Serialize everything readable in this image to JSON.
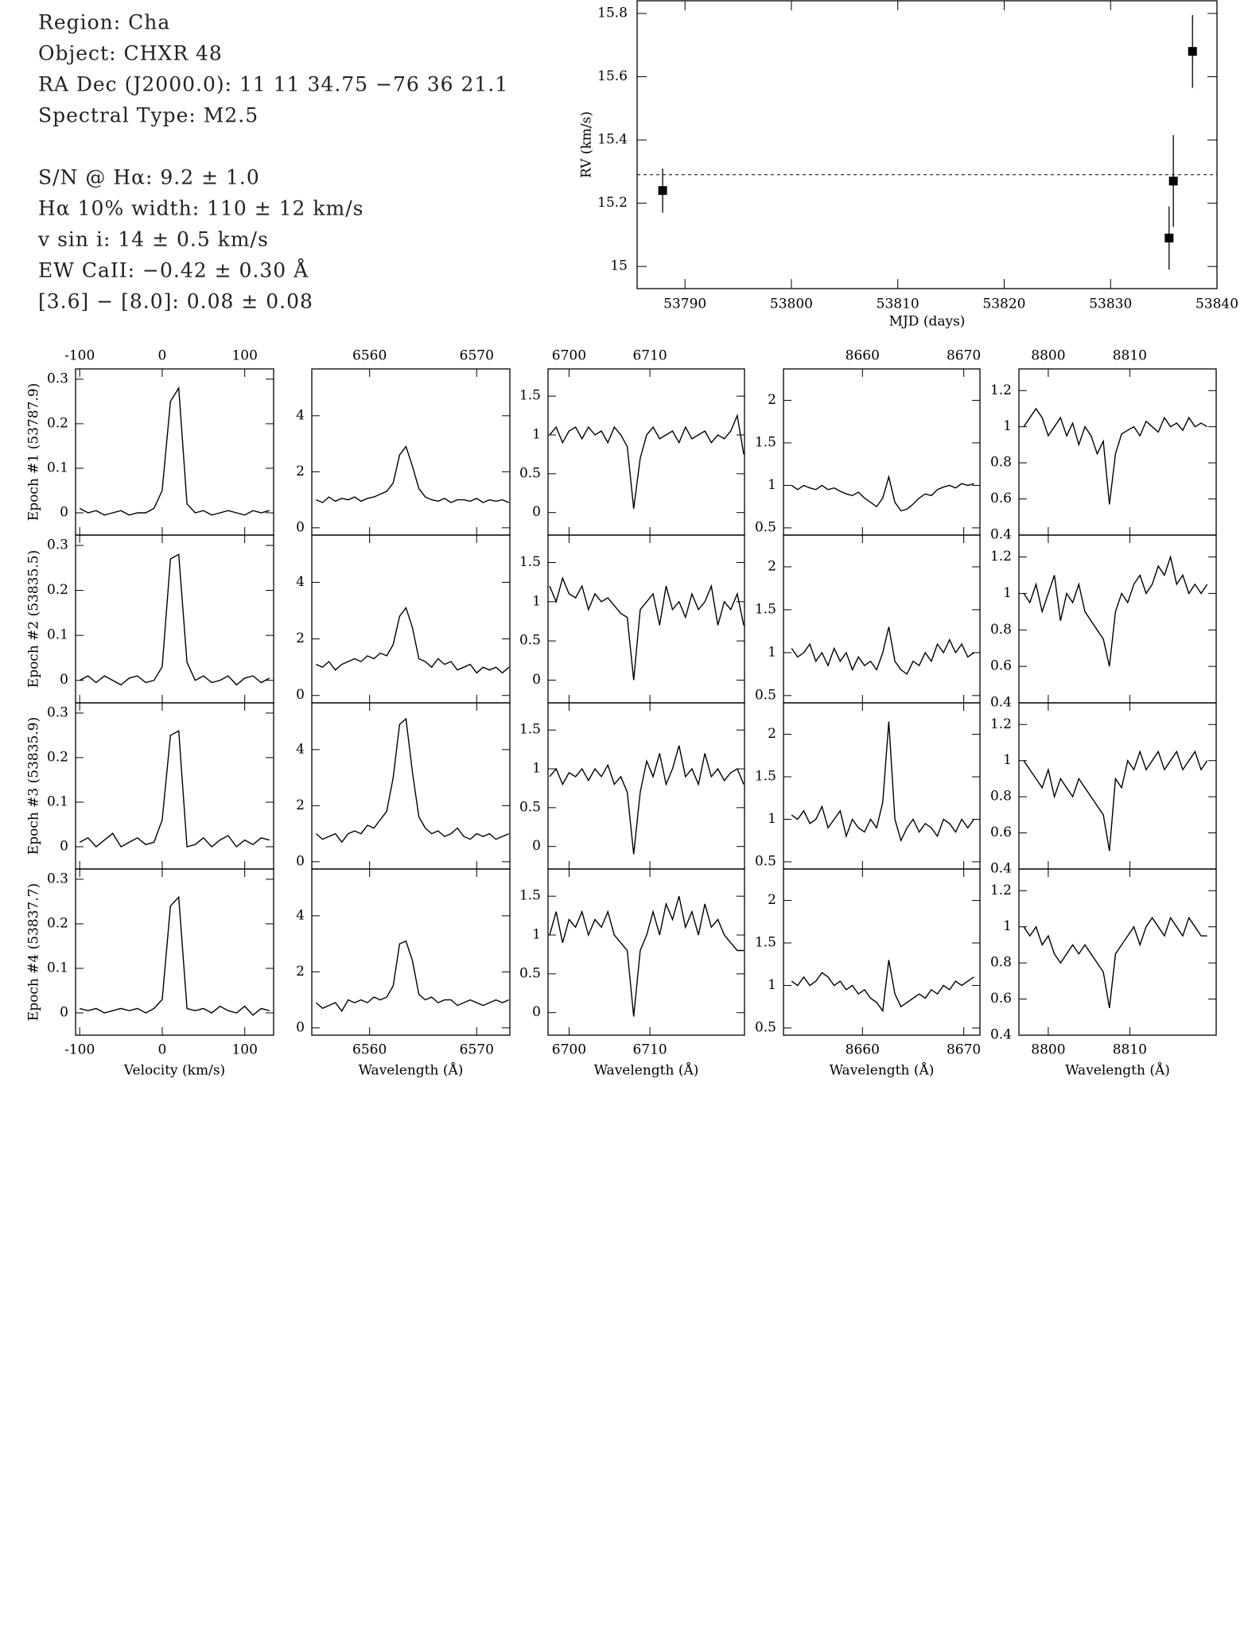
{
  "info": [
    "Region: Cha",
    "Object: CHXR 48",
    "RA Dec (J2000.0): 11 11 34.75 −76 36 21.1",
    "Spectral Type: M2.5",
    "S/N @ Hα: 9.2 ± 1.0",
    "Hα 10% width: 110 ± 12 km/s",
    "v sin i: 14 ± 0.5 km/s",
    "EW CaII: −0.42 ± 0.30 Å",
    "[3.6] − [8.0]: 0.08 ± 0.08"
  ],
  "chart_data": [
    {
      "type": "scatter",
      "xlabel": "MJD (days)",
      "ylabel": "RV (km/s)",
      "color": "#000000",
      "xlim": [
        53785.5,
        53840
      ],
      "xticks": [
        53790,
        53800,
        53810,
        53820,
        53830,
        53840
      ],
      "ylim": [
        14.93,
        15.84
      ],
      "yticks": [
        15,
        15.2,
        15.4,
        15.6,
        15.8
      ],
      "x": [
        53787.9,
        53835.5,
        53835.9,
        53837.7
      ],
      "values": [
        15.24,
        15.09,
        15.27,
        15.68
      ],
      "errors": [
        0.07,
        0.1,
        0.145,
        0.115
      ],
      "reference_line": 15.29
    },
    {
      "type": "line",
      "xlabel": "Velocity (km/s)",
      "color": "#000000",
      "row_labels": [
        "Epoch #1 (53787.9)",
        "Epoch #2 (53835.5)",
        "Epoch #3 (53835.9)",
        "Epoch #4 (53837.7)"
      ],
      "xlim": [
        -105,
        135
      ],
      "xticks": [
        -100,
        0,
        100
      ],
      "ylim": [
        -0.05,
        0.323
      ],
      "yticks": [
        0,
        0.1,
        0.2,
        0.3
      ],
      "x": [
        -100,
        -90,
        -80,
        -70,
        -60,
        -50,
        -40,
        -30,
        -20,
        -10,
        0,
        10,
        20,
        30,
        40,
        50,
        60,
        70,
        80,
        90,
        100,
        110,
        120,
        130
      ],
      "series": [
        {
          "values": [
            0.01,
            0.0,
            0.005,
            -0.005,
            0.0,
            0.005,
            -0.005,
            0.0,
            0.0,
            0.01,
            0.05,
            0.25,
            0.28,
            0.02,
            0.0,
            0.005,
            -0.005,
            0.0,
            0.005,
            0.0,
            -0.005,
            0.005,
            0.0,
            0.005
          ]
        },
        {
          "values": [
            0.0,
            0.01,
            -0.005,
            0.01,
            0.0,
            -0.01,
            0.005,
            0.01,
            -0.005,
            0.0,
            0.03,
            0.27,
            0.28,
            0.04,
            0.0,
            0.01,
            -0.005,
            0.0,
            0.01,
            -0.01,
            0.005,
            0.01,
            -0.005,
            0.005
          ]
        },
        {
          "values": [
            0.01,
            0.02,
            0.0,
            0.015,
            0.03,
            0.0,
            0.01,
            0.02,
            0.005,
            0.01,
            0.06,
            0.25,
            0.26,
            0.0,
            0.005,
            0.02,
            0.0,
            0.015,
            0.025,
            0.0,
            0.015,
            0.005,
            0.02,
            0.015
          ]
        },
        {
          "values": [
            0.01,
            0.005,
            0.01,
            0.0,
            0.005,
            0.01,
            0.005,
            0.01,
            0.0,
            0.01,
            0.03,
            0.24,
            0.26,
            0.01,
            0.005,
            0.01,
            0.0,
            0.015,
            0.005,
            0.0,
            0.015,
            -0.005,
            0.01,
            0.005
          ]
        }
      ]
    },
    {
      "type": "line",
      "xlabel": "Wavelength (Å)",
      "color": "#000000",
      "xlim": [
        6554.6,
        6573.1
      ],
      "xticks": [
        6560,
        6570
      ],
      "ylim": [
        -0.26,
        5.67
      ],
      "yticks": [
        0,
        2,
        4
      ],
      "x": [
        6555,
        6555.6,
        6556.2,
        6556.8,
        6557.4,
        6558,
        6558.6,
        6559.2,
        6559.8,
        6560.4,
        6561,
        6561.6,
        6562.2,
        6562.8,
        6563.4,
        6564,
        6564.6,
        6565.2,
        6565.8,
        6566.4,
        6567,
        6567.6,
        6568.2,
        6568.8,
        6569.4,
        6570,
        6570.6,
        6571.2,
        6571.8,
        6572.4,
        6573
      ],
      "series": [
        {
          "values": [
            1.0,
            0.9,
            1.1,
            0.95,
            1.05,
            1.0,
            1.1,
            0.95,
            1.05,
            1.1,
            1.2,
            1.3,
            1.6,
            2.6,
            2.9,
            2.2,
            1.4,
            1.1,
            1.0,
            0.95,
            1.05,
            0.9,
            1.0,
            1.0,
            0.95,
            1.05,
            0.9,
            1.0,
            0.95,
            1.0,
            0.9
          ]
        },
        {
          "values": [
            1.1,
            1.0,
            1.2,
            0.9,
            1.1,
            1.2,
            1.3,
            1.2,
            1.4,
            1.3,
            1.5,
            1.4,
            1.8,
            2.8,
            3.1,
            2.4,
            1.3,
            1.2,
            1.0,
            1.3,
            1.1,
            1.2,
            0.9,
            1.0,
            1.1,
            0.8,
            1.0,
            0.9,
            1.0,
            0.8,
            1.0
          ]
        },
        {
          "values": [
            1.0,
            0.8,
            0.9,
            1.0,
            0.7,
            1.0,
            1.1,
            1.0,
            1.3,
            1.2,
            1.5,
            1.8,
            3.0,
            4.9,
            5.1,
            3.2,
            1.6,
            1.2,
            1.0,
            1.1,
            0.9,
            1.0,
            1.2,
            0.9,
            0.8,
            1.0,
            0.9,
            1.0,
            0.8,
            0.9,
            1.0
          ]
        },
        {
          "values": [
            0.9,
            0.7,
            0.8,
            0.9,
            0.6,
            1.0,
            0.9,
            1.0,
            0.9,
            1.1,
            1.0,
            1.1,
            1.5,
            3.0,
            3.1,
            2.4,
            1.2,
            1.0,
            1.1,
            0.9,
            1.0,
            1.0,
            0.8,
            0.9,
            1.0,
            0.9,
            0.8,
            0.9,
            1.0,
            0.9,
            1.0
          ]
        }
      ]
    },
    {
      "type": "line",
      "xlabel": "Wavelength (Å)",
      "color": "#000000",
      "xlim": [
        6697.4,
        6721.7
      ],
      "xticks": [
        6700,
        6710
      ],
      "ylim": [
        -0.29,
        1.85
      ],
      "yticks": [
        0,
        0.5,
        1,
        1.5
      ],
      "x": [
        6697.6,
        6698.4,
        6699.2,
        6700,
        6700.8,
        6701.6,
        6702.4,
        6703.2,
        6704,
        6704.8,
        6705.6,
        6706.4,
        6707.2,
        6708,
        6708.8,
        6709.6,
        6710.4,
        6711.2,
        6712,
        6712.8,
        6713.6,
        6714.4,
        6715.2,
        6716,
        6716.8,
        6717.6,
        6718.4,
        6719.2,
        6720,
        6720.8,
        6721.6
      ],
      "series": [
        {
          "values": [
            1.0,
            1.1,
            0.9,
            1.05,
            1.1,
            0.95,
            1.1,
            1.0,
            1.05,
            0.9,
            1.1,
            1.0,
            0.85,
            0.05,
            0.7,
            1.0,
            1.1,
            0.95,
            1.0,
            1.05,
            0.9,
            1.1,
            0.95,
            1.0,
            1.05,
            0.9,
            1.0,
            0.95,
            1.05,
            1.25,
            0.75
          ]
        },
        {
          "values": [
            1.2,
            1.0,
            1.3,
            1.1,
            1.05,
            1.2,
            0.9,
            1.1,
            1.0,
            1.05,
            0.95,
            0.85,
            0.8,
            0.0,
            0.9,
            1.0,
            1.1,
            0.7,
            1.2,
            0.9,
            1.0,
            0.8,
            1.1,
            0.9,
            1.0,
            1.2,
            0.7,
            1.0,
            0.9,
            1.1,
            0.7
          ]
        },
        {
          "values": [
            0.9,
            1.0,
            0.8,
            0.95,
            0.9,
            1.0,
            0.85,
            1.0,
            0.9,
            1.05,
            0.8,
            0.9,
            0.7,
            -0.1,
            0.7,
            1.1,
            0.9,
            1.2,
            0.8,
            1.0,
            1.3,
            0.9,
            1.0,
            0.8,
            1.2,
            0.9,
            1.0,
            0.85,
            0.95,
            1.0,
            0.8
          ]
        },
        {
          "values": [
            1.0,
            1.3,
            0.9,
            1.2,
            1.1,
            1.3,
            1.0,
            1.2,
            1.1,
            1.3,
            1.0,
            0.9,
            0.8,
            -0.05,
            0.8,
            1.0,
            1.3,
            1.0,
            1.4,
            1.2,
            1.5,
            1.1,
            1.3,
            1.0,
            1.4,
            1.1,
            1.2,
            1.0,
            0.9,
            0.8,
            0.8
          ]
        }
      ]
    },
    {
      "type": "line",
      "xlabel": "Wavelength (Å)",
      "color": "#000000",
      "xlim": [
        8652.2,
        8671.6
      ],
      "xticks": [
        8660,
        8670
      ],
      "ylim": [
        0.415,
        2.37
      ],
      "yticks": [
        0.5,
        1,
        1.5,
        2
      ],
      "x": [
        8653,
        8653.6,
        8654.2,
        8654.8,
        8655.4,
        8656,
        8656.6,
        8657.2,
        8657.8,
        8658.4,
        8659,
        8659.6,
        8660.2,
        8660.8,
        8661.4,
        8662,
        8662.6,
        8663.2,
        8663.8,
        8664.4,
        8665,
        8665.6,
        8666.2,
        8666.8,
        8667.4,
        8668,
        8668.6,
        8669.2,
        8669.8,
        8670.4,
        8671
      ],
      "series": [
        {
          "values": [
            1.0,
            0.95,
            1.0,
            0.97,
            0.95,
            1.0,
            0.95,
            0.97,
            0.93,
            0.9,
            0.88,
            0.92,
            0.85,
            0.8,
            0.75,
            0.85,
            1.1,
            0.8,
            0.7,
            0.72,
            0.78,
            0.85,
            0.9,
            0.88,
            0.95,
            0.98,
            1.0,
            0.97,
            1.02,
            1.0,
            1.02
          ]
        },
        {
          "values": [
            1.05,
            0.95,
            1.0,
            1.1,
            0.9,
            1.0,
            0.85,
            1.05,
            0.9,
            1.0,
            0.8,
            0.95,
            0.85,
            0.9,
            0.8,
            1.0,
            1.3,
            0.9,
            0.8,
            0.75,
            0.9,
            0.85,
            1.0,
            0.9,
            1.1,
            1.0,
            1.15,
            1.0,
            1.1,
            0.95,
            1.0
          ]
        },
        {
          "values": [
            1.05,
            1.0,
            1.1,
            0.95,
            1.0,
            1.15,
            0.9,
            1.0,
            1.1,
            0.8,
            1.0,
            0.9,
            0.85,
            1.0,
            0.9,
            1.2,
            2.15,
            1.0,
            0.75,
            0.9,
            1.0,
            0.85,
            0.95,
            0.9,
            0.8,
            1.0,
            0.95,
            0.85,
            1.0,
            0.9,
            1.0
          ]
        },
        {
          "values": [
            1.05,
            1.0,
            1.1,
            1.0,
            1.05,
            1.15,
            1.1,
            1.0,
            1.05,
            0.95,
            1.0,
            0.9,
            0.95,
            0.85,
            0.8,
            0.7,
            1.3,
            0.9,
            0.75,
            0.8,
            0.85,
            0.9,
            0.85,
            0.95,
            0.9,
            1.0,
            0.95,
            1.05,
            1.0,
            1.05,
            1.1
          ]
        }
      ]
    },
    {
      "type": "line",
      "xlabel": "Wavelength (Å)",
      "color": "#000000",
      "xlim": [
        8796.4,
        8820.6
      ],
      "xticks": [
        8800,
        8810
      ],
      "ylim": [
        0.4,
        1.32
      ],
      "yticks": [
        0.4,
        0.6,
        0.8,
        1,
        1.2
      ],
      "x": [
        8797,
        8797.75,
        8798.5,
        8799.25,
        8800,
        8800.75,
        8801.5,
        8802.25,
        8803,
        8803.75,
        8804.5,
        8805.25,
        8806,
        8806.75,
        8807.5,
        8808.25,
        8809,
        8809.75,
        8810.5,
        8811.25,
        8812,
        8812.75,
        8813.5,
        8814.25,
        8815,
        8815.75,
        8816.5,
        8817.25,
        8818,
        8818.75,
        8819.5
      ],
      "series": [
        {
          "values": [
            1.0,
            1.05,
            1.1,
            1.05,
            0.95,
            1.0,
            1.05,
            0.95,
            1.02,
            0.9,
            1.0,
            0.95,
            0.85,
            0.92,
            0.57,
            0.85,
            0.96,
            0.98,
            1.0,
            0.95,
            1.03,
            1.0,
            0.97,
            1.05,
            1.0,
            1.02,
            0.98,
            1.05,
            1.0,
            1.02,
            1.0
          ]
        },
        {
          "values": [
            1.0,
            0.95,
            1.05,
            0.9,
            1.0,
            1.1,
            0.85,
            1.0,
            0.95,
            1.05,
            0.9,
            0.85,
            0.8,
            0.75,
            0.6,
            0.9,
            1.0,
            0.95,
            1.05,
            1.1,
            1.0,
            1.05,
            1.15,
            1.1,
            1.2,
            1.05,
            1.1,
            1.0,
            1.05,
            1.0,
            1.05
          ]
        },
        {
          "values": [
            1.0,
            0.95,
            0.9,
            0.85,
            0.95,
            0.8,
            0.9,
            0.85,
            0.8,
            0.9,
            0.85,
            0.8,
            0.75,
            0.7,
            0.5,
            0.9,
            0.85,
            1.0,
            0.95,
            1.05,
            0.95,
            1.0,
            1.05,
            0.95,
            1.0,
            1.05,
            0.95,
            1.0,
            1.05,
            0.95,
            1.0
          ]
        },
        {
          "values": [
            1.0,
            0.95,
            1.0,
            0.9,
            0.95,
            0.85,
            0.8,
            0.85,
            0.9,
            0.85,
            0.9,
            0.85,
            0.8,
            0.75,
            0.55,
            0.85,
            0.9,
            0.95,
            1.0,
            0.9,
            1.0,
            1.05,
            1.0,
            0.95,
            1.05,
            1.0,
            0.95,
            1.05,
            1.0,
            0.95,
            0.95
          ]
        }
      ]
    }
  ]
}
